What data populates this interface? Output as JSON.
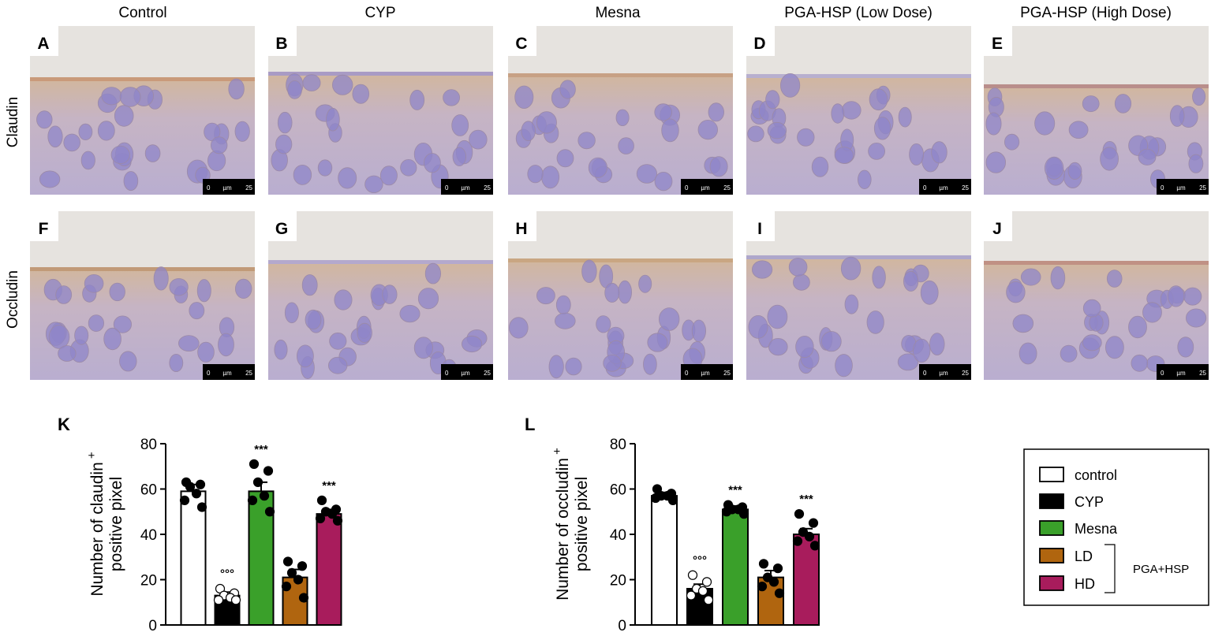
{
  "columns": [
    "Control",
    "CYP",
    "Mesna",
    "PGA-HSP (Low Dose)",
    "PGA-HSP (High Dose)"
  ],
  "rows": [
    "Claudin",
    "Occludin"
  ],
  "panel_letters": [
    "A",
    "B",
    "C",
    "D",
    "E",
    "F",
    "G",
    "H",
    "I",
    "J"
  ],
  "scale_bar": {
    "start": "0",
    "unit": "µm",
    "end": "25"
  },
  "legend": {
    "items": [
      {
        "label": "control",
        "color": "#ffffff"
      },
      {
        "label": "CYP",
        "color": "#000000"
      },
      {
        "label": "Mesna",
        "color": "#3aa02a"
      },
      {
        "label": "LD",
        "color": "#b0650f"
      },
      {
        "label": "HD",
        "color": "#a81c5c"
      }
    ],
    "group_label": "PGA+HSP"
  },
  "chart_data": [
    {
      "type": "bar",
      "panel": "K",
      "ylabel_line1": "Number of claudin",
      "ylabel_sup": "+",
      "ylabel_line2": "positive pixel",
      "ylim": [
        0,
        80
      ],
      "yticks": [
        "0",
        "20",
        "40",
        "60",
        "80"
      ],
      "categories": [
        "control",
        "CYP",
        "Mesna",
        "LD",
        "HD"
      ],
      "values": [
        59,
        13,
        59,
        21,
        49
      ],
      "errors": [
        3,
        1.5,
        4,
        3.5,
        2
      ],
      "annotations": [
        "",
        "°°°",
        "***",
        "",
        "***"
      ],
      "points": [
        [
          63,
          62,
          61,
          58,
          55,
          52
        ],
        [
          16,
          14,
          13,
          12,
          11,
          11
        ],
        [
          71,
          68,
          63,
          57,
          55,
          50
        ],
        [
          28,
          26,
          23,
          20,
          17,
          12
        ],
        [
          55,
          51,
          50,
          49,
          47,
          46
        ]
      ]
    },
    {
      "type": "bar",
      "panel": "L",
      "ylabel_line1": "Number of occludin",
      "ylabel_sup": "+",
      "ylabel_line2": "positive pixel",
      "ylim": [
        0,
        80
      ],
      "yticks": [
        "0",
        "20",
        "40",
        "60",
        "80"
      ],
      "categories": [
        "control",
        "CYP",
        "Mesna",
        "LD",
        "HD"
      ],
      "values": [
        57,
        16,
        51,
        21,
        40
      ],
      "errors": [
        1.5,
        2,
        1.5,
        3,
        2.5
      ],
      "annotations": [
        "",
        "°°°",
        "***",
        "",
        "***"
      ],
      "points": [
        [
          60,
          58,
          57,
          57,
          56,
          55
        ],
        [
          22,
          19,
          16,
          15,
          13,
          11
        ],
        [
          53,
          52,
          51,
          51,
          50,
          49
        ],
        [
          27,
          25,
          21,
          19,
          17,
          14
        ],
        [
          49,
          45,
          41,
          39,
          37,
          35
        ]
      ]
    }
  ]
}
